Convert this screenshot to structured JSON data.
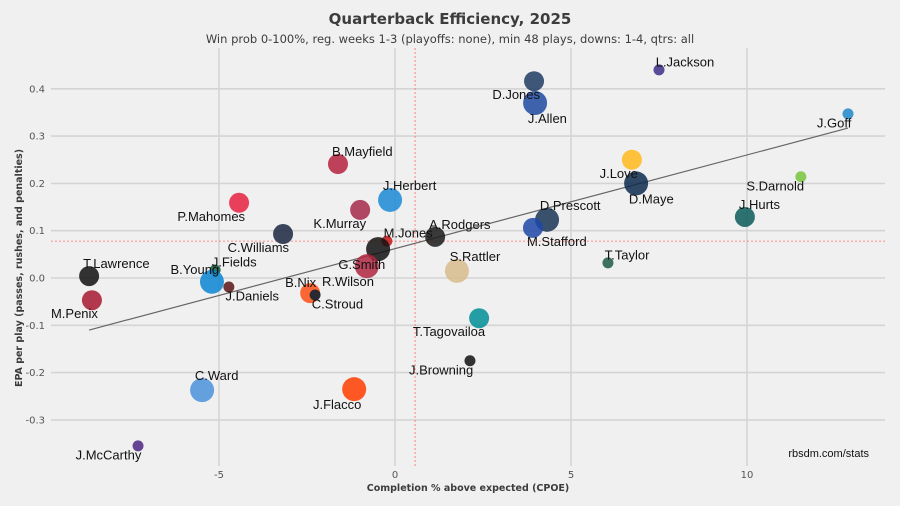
{
  "chart_data": {
    "type": "scatter",
    "title": "Quarterback Efficiency, 2025",
    "subtitle": "Win prob 0-100%, reg. weeks 1-3 (playoffs: none), min 48 plays, downs: 1-4, qtrs: all",
    "xlabel": "Completion % above expected (CPOE)",
    "ylabel": "EPA per play (passes, rushes, and penalties)",
    "xlim": [
      -9.5,
      13.9
    ],
    "ylim": [
      -0.4,
      0.49
    ],
    "x_ticks": [
      -5,
      0,
      5,
      10
    ],
    "x_tick_labels": [
      "-5",
      "0",
      "5",
      "10"
    ],
    "y_ticks": [
      0.4,
      0.3,
      0.2,
      0.1,
      0.0,
      -0.1,
      -0.2,
      -0.3
    ],
    "y_tick_labels": [
      "0.4",
      "0.3",
      "0.2",
      "0.1",
      "0.0",
      "-0.1",
      "-0.2",
      "-0.3"
    ],
    "grid": true,
    "mean_lines": {
      "cpoe": 0.57,
      "epa": 0.078,
      "color": "#ff6b6b"
    },
    "trend_line": {
      "x": [
        -8.69,
        12.87
      ],
      "y": [
        -0.11,
        0.317
      ],
      "color": "#666666"
    },
    "credit": "rbsdm.com/stats",
    "points": [
      {
        "name": "L.Jackson",
        "cpoe": 7.5,
        "epa": 0.44,
        "size": "small",
        "color": "#3f2e8a",
        "label_pos": "top-right"
      },
      {
        "name": "D.Jones",
        "cpoe": 3.95,
        "epa": 0.416,
        "size": "medium",
        "color": "#1f3c64",
        "label_pos": "bottom-left"
      },
      {
        "name": "J.Allen",
        "cpoe": 3.98,
        "epa": 0.37,
        "size": "large",
        "color": "#1e4aa0",
        "label_pos": "bottom-right"
      },
      {
        "name": "J.Goff",
        "cpoe": 12.87,
        "epa": 0.347,
        "size": "small",
        "color": "#1e88c9",
        "label_pos": "bottom-left"
      },
      {
        "name": "J.Love",
        "cpoe": 6.73,
        "epa": 0.25,
        "size": "medium",
        "color": "#ffb81c",
        "label_pos": "bottom-left"
      },
      {
        "name": "D.Maye",
        "cpoe": 6.85,
        "epa": 0.2,
        "size": "large",
        "color": "#0d2a4d",
        "label_pos": "bottom-right"
      },
      {
        "name": "S.Darnold",
        "cpoe": 11.53,
        "epa": 0.214,
        "size": "small",
        "color": "#78c43c",
        "label_pos": "bottom-left"
      },
      {
        "name": "J.Hurts",
        "cpoe": 9.94,
        "epa": 0.129,
        "size": "medium",
        "color": "#0b5a5a",
        "label_pos": "top-right"
      },
      {
        "name": "D.Prescott",
        "cpoe": 4.32,
        "epa": 0.123,
        "size": "large",
        "color": "#1a3556",
        "label_pos": "top-right"
      },
      {
        "name": "M.Stafford",
        "cpoe": 3.92,
        "epa": 0.106,
        "size": "medium",
        "color": "#1e47a8",
        "label_pos": "bottom-right"
      },
      {
        "name": "T.Taylor",
        "cpoe": 6.05,
        "epa": 0.032,
        "size": "small",
        "color": "#1e5c44",
        "label_pos": "top-right"
      },
      {
        "name": "B.Mayfield",
        "cpoe": -1.62,
        "epa": 0.241,
        "size": "medium",
        "color": "#b5213e",
        "label_pos": "top-right"
      },
      {
        "name": "J.Herbert",
        "cpoe": -0.14,
        "epa": 0.165,
        "size": "large",
        "color": "#1b89d6",
        "label_pos": "top-right"
      },
      {
        "name": "P.Mahomes",
        "cpoe": -4.43,
        "epa": 0.159,
        "size": "medium",
        "color": "#e6213f",
        "label_pos": "bottom-left"
      },
      {
        "name": "K.Murray",
        "cpoe": -0.99,
        "epa": 0.144,
        "size": "medium",
        "color": "#a52a4b",
        "label_pos": "bottom-left"
      },
      {
        "name": "C.Williams",
        "cpoe": -3.18,
        "epa": 0.093,
        "size": "medium",
        "color": "#1a2640",
        "label_pos": "bottom-left"
      },
      {
        "name": "M.Jones",
        "cpoe": -0.23,
        "epa": 0.078,
        "size": "small",
        "color": "#c41414",
        "label_pos": "top-right"
      },
      {
        "name": "A.Rodgers",
        "cpoe": 1.14,
        "epa": 0.087,
        "size": "medium",
        "color": "#1a1a1a",
        "label_pos": "top-right"
      },
      {
        "name": "G.Smith",
        "cpoe": -0.48,
        "epa": 0.061,
        "size": "large",
        "color": "#111111",
        "label_pos": "bottom-left"
      },
      {
        "name": "R.Wilson",
        "cpoe": -0.8,
        "epa": 0.025,
        "size": "large",
        "color": "#b0263f",
        "label_pos": "bottom-left"
      },
      {
        "name": "S.Rattler",
        "cpoe": 1.76,
        "epa": 0.015,
        "size": "large",
        "color": "#d7bc8c",
        "label_pos": "top-right"
      },
      {
        "name": "T.Lawrence",
        "cpoe": -8.69,
        "epa": 0.004,
        "size": "medium",
        "color": "#111111",
        "label_pos": "top-right"
      },
      {
        "name": "J.Fields",
        "cpoe": -5.11,
        "epa": 0.017,
        "size": "small",
        "color": "#125740",
        "label_pos": "top-right"
      },
      {
        "name": "B.Young",
        "cpoe": -5.2,
        "epa": -0.008,
        "size": "large",
        "color": "#0a85d2",
        "label_pos": "top-left"
      },
      {
        "name": "J.Daniels",
        "cpoe": -4.72,
        "epa": -0.019,
        "size": "small",
        "color": "#5a1414",
        "label_pos": "bottom-right"
      },
      {
        "name": "B.Nix",
        "cpoe": -2.41,
        "epa": -0.032,
        "size": "medium",
        "color": "#fb4f14",
        "label_pos": "top-left"
      },
      {
        "name": "C.Stroud",
        "cpoe": -2.27,
        "epa": -0.036,
        "size": "small",
        "color": "#03202f",
        "label_pos": "bottom-right"
      },
      {
        "name": "M.Penix",
        "cpoe": -8.61,
        "epa": -0.047,
        "size": "medium",
        "color": "#a71930",
        "label_pos": "bottom-left"
      },
      {
        "name": "T.Tagovailoa",
        "cpoe": 2.39,
        "epa": -0.085,
        "size": "medium",
        "color": "#008e97",
        "label_pos": "bottom-left"
      },
      {
        "name": "J.Browning",
        "cpoe": 2.13,
        "epa": -0.175,
        "size": "small",
        "color": "#111111",
        "label_pos": "bottom-left"
      },
      {
        "name": "C.Ward",
        "cpoe": -5.48,
        "epa": -0.237,
        "size": "large",
        "color": "#4b92db",
        "label_pos": "top-right"
      },
      {
        "name": "J.Flacco",
        "cpoe": -1.16,
        "epa": -0.235,
        "size": "large",
        "color": "#ff3c00",
        "label_pos": "bottom-left"
      },
      {
        "name": "J.McCarthy",
        "cpoe": -7.3,
        "epa": -0.355,
        "size": "small",
        "color": "#4f2683",
        "label_pos": "bottom-left"
      }
    ]
  }
}
